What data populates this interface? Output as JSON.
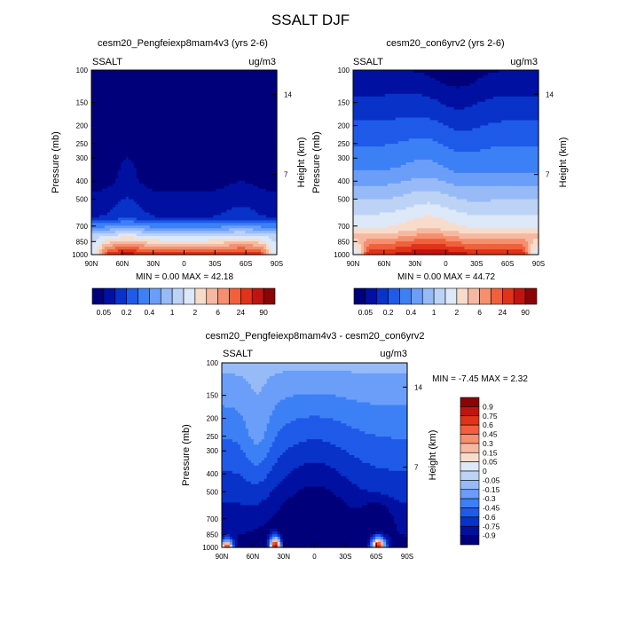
{
  "page_title": "SSALT DJF",
  "colors": {
    "palette": [
      "#00007a",
      "#0010a0",
      "#0832c8",
      "#1f5ae8",
      "#3d80f5",
      "#6a9ef8",
      "#97bbf7",
      "#bcd3f6",
      "#dde8f8",
      "#f8dccb",
      "#f6b8a0",
      "#f58f6e",
      "#f0603c",
      "#df3419",
      "#c01410",
      "#8a0505"
    ],
    "diff_palette": [
      "#00007a",
      "#0010a0",
      "#0832c8",
      "#1f5ae8",
      "#3d80f5",
      "#6a9ef8",
      "#97bbf7",
      "#bcd3f6",
      "#dde8f8",
      "#fff2ea",
      "#f8dccb",
      "#f6b8a0",
      "#f58f6e",
      "#f0603c",
      "#df3419",
      "#c01410",
      "#8a0505"
    ]
  },
  "chart_data": [
    {
      "type": "heatmap",
      "title": "cesm20_Pengfeiexp8mam4v3 (yrs 2-6)",
      "left_label": "SSALT",
      "right_label": "ug/m3",
      "ylabel": "Pressure (mb)",
      "y2label": "Height (km)",
      "x_ticks": [
        "90N",
        "60N",
        "30N",
        "0",
        "30S",
        "60S",
        "90S"
      ],
      "y_ticks": [
        "100",
        "150",
        "200",
        "250",
        "300",
        "400",
        "500",
        "700",
        "850",
        "1000"
      ],
      "y2_ticks": [
        "14",
        "7"
      ],
      "min_max": "MIN =   0.00   MAX =  42.18",
      "colorbar_labels": [
        "0.05",
        "0.2",
        "0.4",
        "1",
        "2",
        "6",
        "24",
        "90"
      ],
      "scenario": "exp"
    },
    {
      "type": "heatmap",
      "title": "cesm20_con6yrv2 (yrs 2-6)",
      "left_label": "SSALT",
      "right_label": "ug/m3",
      "ylabel": "Pressure (mb)",
      "y2label": "Height (km)",
      "x_ticks": [
        "90N",
        "60N",
        "30N",
        "0",
        "30S",
        "60S",
        "90S"
      ],
      "y_ticks": [
        "100",
        "150",
        "200",
        "250",
        "300",
        "400",
        "500",
        "700",
        "850",
        "1000"
      ],
      "y2_ticks": [
        "14",
        "7"
      ],
      "min_max": "MIN =   0.00   MAX =  44.72",
      "colorbar_labels": [
        "0.05",
        "0.2",
        "0.4",
        "1",
        "2",
        "6",
        "24",
        "90"
      ],
      "scenario": "con"
    },
    {
      "type": "heatmap",
      "title": "cesm20_Pengfeiexp8mam4v3 - cesm20_con6yrv2",
      "left_label": "SSALT",
      "right_label": "ug/m3",
      "ylabel": "Pressure (mb)",
      "y2label": "Height (km)",
      "x_ticks": [
        "90N",
        "60N",
        "30N",
        "0",
        "30S",
        "60S",
        "90S"
      ],
      "y_ticks": [
        "100",
        "150",
        "200",
        "250",
        "300",
        "400",
        "500",
        "700",
        "850",
        "1000"
      ],
      "y2_ticks": [
        "14",
        "7"
      ],
      "min_max": "MIN = -7.45   MAX =   2.32",
      "colorbar_labels": [
        "0.9",
        "0.75",
        "0.6",
        "0.45",
        "0.3",
        "0.15",
        "0.05",
        "0",
        "-0.05",
        "-0.15",
        "-0.3",
        "-0.45",
        "-0.6",
        "-0.75",
        "-0.9"
      ],
      "scenario": "diff"
    }
  ]
}
